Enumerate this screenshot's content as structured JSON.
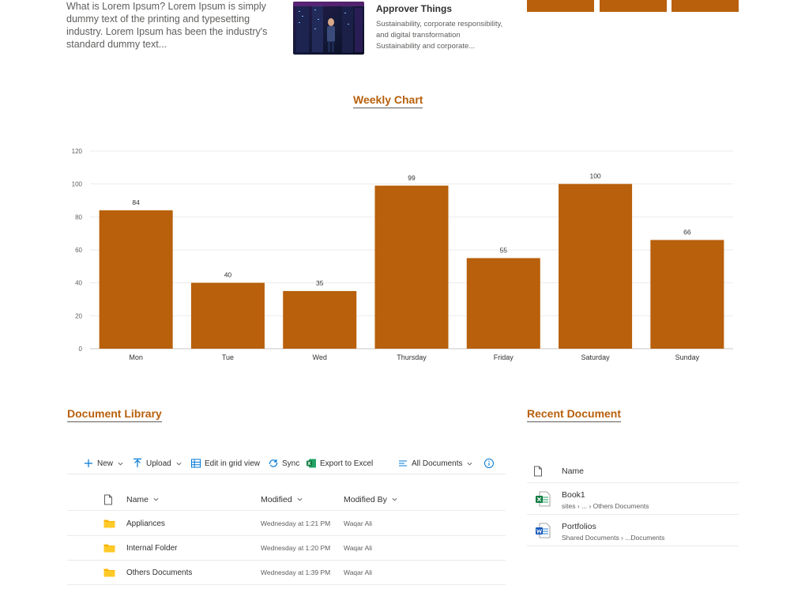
{
  "top": {
    "lorem_text": "What is Lorem Ipsum? Lorem Ipsum is simply dummy text of the printing and typesetting industry. Lorem Ipsum has been the industry's standard dummy text...",
    "news": {
      "title": "Approver Things",
      "desc_line1": "Sustainability, corporate responsibility,",
      "desc_line2": "and digital transformation",
      "desc_line3": "Sustainability and corporate..."
    },
    "tile_color": "#b8600c"
  },
  "chart_section": {
    "title": "Weekly Chart"
  },
  "chart_data": {
    "type": "bar",
    "categories": [
      "Mon",
      "Tue",
      "Wed",
      "Thursday",
      "Friday",
      "Saturday",
      "Sunday"
    ],
    "values": [
      84,
      40,
      35,
      99,
      55,
      100,
      66
    ],
    "ylim": [
      0,
      120
    ],
    "yticks": [
      0,
      20,
      40,
      60,
      80,
      100,
      120
    ],
    "bar_color": "#b8600c",
    "grid": true,
    "show_data_labels": true
  },
  "library": {
    "title": "Document Library",
    "toolbar": {
      "new": "New",
      "upload": "Upload",
      "grid_view": "Edit in grid view",
      "sync": "Sync",
      "export": "Export to Excel",
      "view": "All Documents"
    },
    "columns": {
      "name": "Name",
      "modified": "Modified",
      "modified_by": "Modified By"
    },
    "rows": [
      {
        "name": "Appliances",
        "modified": "Wednesday at 1:21 PM",
        "modified_by": "Waqar Ali"
      },
      {
        "name": "Internal Folder",
        "modified": "Wednesday at 1:20 PM",
        "modified_by": "Waqar Ali"
      },
      {
        "name": "Others Documents",
        "modified": "Wednesday at 1:39 PM",
        "modified_by": "Waqar Ali"
      }
    ]
  },
  "recent": {
    "title": "Recent Document",
    "column_name": "Name",
    "items": [
      {
        "name": "Book1",
        "path": "sites › ... › Others Documents",
        "icon": "excel-icon"
      },
      {
        "name": "Portfolios",
        "path": "Shared Documents › ...Documents",
        "icon": "word-icon"
      }
    ]
  }
}
